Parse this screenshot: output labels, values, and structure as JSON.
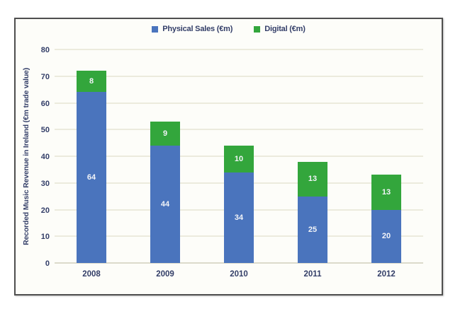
{
  "chart_data": {
    "type": "bar",
    "stacked": true,
    "categories": [
      "2008",
      "2009",
      "2010",
      "2011",
      "2012"
    ],
    "series": [
      {
        "name": "Physical Sales (€m)",
        "color": "#4a74bd",
        "values": [
          64,
          44,
          34,
          25,
          20
        ]
      },
      {
        "name": "Digital (€m)",
        "color": "#33a63c",
        "values": [
          8,
          9,
          10,
          13,
          13
        ]
      }
    ],
    "totals": [
      72,
      53,
      44,
      38,
      33
    ],
    "title": "",
    "xlabel": "",
    "ylabel": "Recorded Music Revenue in Ireland (€m trade value)",
    "ylim": [
      0,
      80
    ],
    "yticks": [
      0,
      10,
      20,
      30,
      40,
      50,
      60,
      70,
      80
    ],
    "grid": true,
    "legend_position": "top",
    "data_labels": "white, centered in each segment",
    "colors": {
      "text_navy": "#333e68",
      "gridline": "#ecebdd",
      "frame_border": "#4f4f4f",
      "plot_background": "#fdfdf9"
    }
  }
}
